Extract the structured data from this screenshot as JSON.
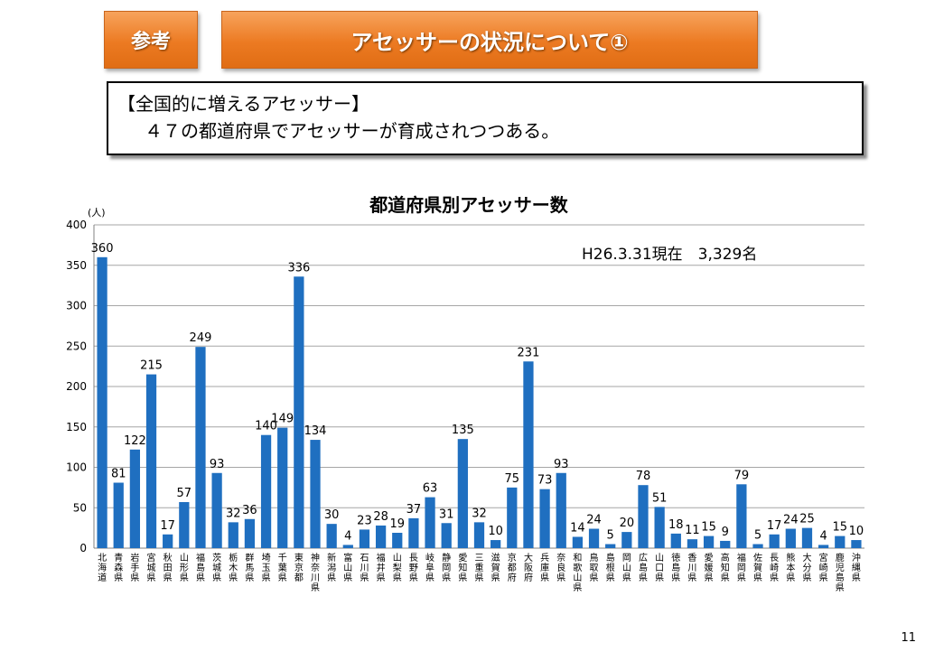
{
  "header": {
    "tag_label": "参考",
    "title": "アセッサーの状況について①"
  },
  "info": {
    "line1": "【全国的に増えるアセッサー】",
    "line2": "４７の都道府県でアセッサーが育成されつつある。"
  },
  "page_number": "11",
  "colors": {
    "bar": "#1f6fc0",
    "grid": "#a6a6a6",
    "header_orange": "#ec7a22"
  },
  "chart_data": {
    "type": "bar",
    "title": "都道府県別アセッサー数",
    "ylabel": "(人)",
    "annotation": "H26.3.31現在　3,329名",
    "ylim": [
      0,
      400
    ],
    "yticks": [
      0,
      50,
      100,
      150,
      200,
      250,
      300,
      350,
      400
    ],
    "grid": true,
    "categories": [
      "北海道",
      "青森県",
      "岩手県",
      "宮城県",
      "秋田県",
      "山形県",
      "福島県",
      "茨城県",
      "栃木県",
      "群馬県",
      "埼玉県",
      "千葉県",
      "東京都",
      "神奈川県",
      "新潟県",
      "富山県",
      "石川県",
      "福井県",
      "山梨県",
      "長野県",
      "岐阜県",
      "静岡県",
      "愛知県",
      "三重県",
      "滋賀県",
      "京都府",
      "大阪府",
      "兵庫県",
      "奈良県",
      "和歌山県",
      "鳥取県",
      "島根県",
      "岡山県",
      "広島県",
      "山口県",
      "徳島県",
      "香川県",
      "愛媛県",
      "高知県",
      "福岡県",
      "佐賀県",
      "長崎県",
      "熊本県",
      "大分県",
      "宮崎県",
      "鹿児島県",
      "沖縄県"
    ],
    "values": [
      360,
      81,
      122,
      215,
      17,
      57,
      249,
      93,
      32,
      36,
      140,
      149,
      336,
      134,
      30,
      4,
      23,
      28,
      19,
      37,
      63,
      31,
      135,
      32,
      10,
      75,
      231,
      73,
      93,
      14,
      24,
      5,
      20,
      78,
      51,
      18,
      11,
      15,
      9,
      79,
      5,
      17,
      24,
      25,
      4,
      15,
      10
    ]
  }
}
